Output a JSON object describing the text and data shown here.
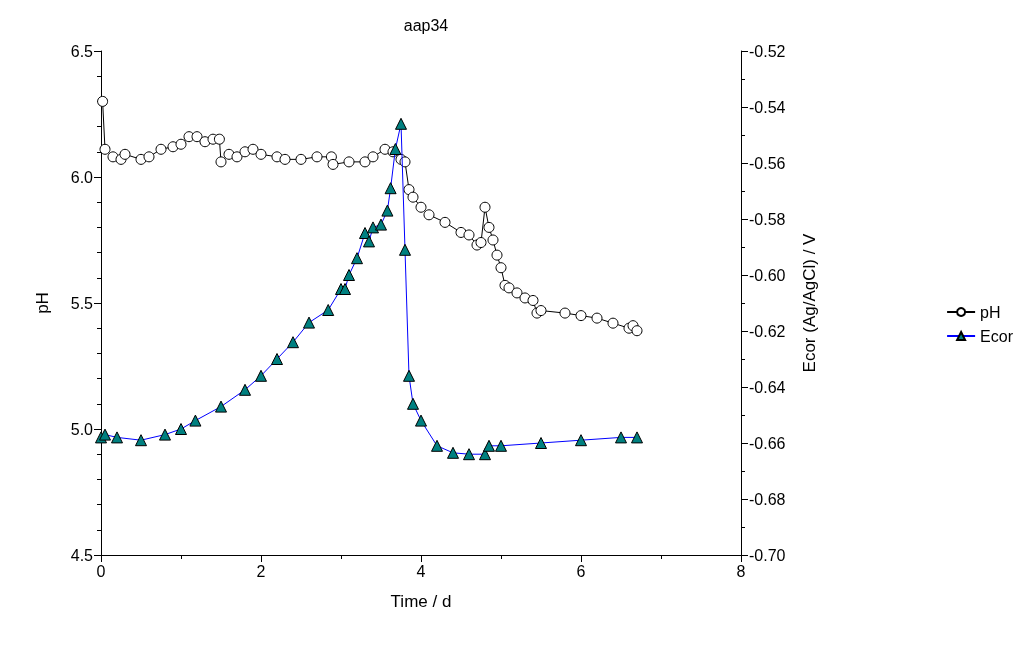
{
  "chart_data": {
    "type": "line",
    "title": "aap34",
    "xlabel": "Time / d",
    "ylabel": "pH",
    "y2label": "Ecor (Ag/AgCl) / V",
    "xlim": [
      0,
      8
    ],
    "xticks": [
      0,
      2,
      4,
      6,
      8
    ],
    "ylim": [
      4.5,
      6.5
    ],
    "yticks": [
      4.5,
      {
        "value": 5,
        "label": "5.0"
      },
      5.5,
      {
        "value": 6,
        "label": "6.0"
      },
      6.5
    ],
    "y2lim": [
      -0.7,
      -0.52
    ],
    "y2ticks": [
      {
        "value": -0.7,
        "label": "-0.70"
      },
      -0.68,
      -0.66,
      -0.64,
      -0.62,
      {
        "value": -0.6,
        "label": "-0.60"
      },
      -0.58,
      -0.56,
      -0.54,
      -0.52
    ],
    "grid": false,
    "legend": "right",
    "line_style": "solid",
    "series": [
      {
        "name": "pH",
        "color": "#000000",
        "marker": "circle",
        "x": [
          0.02,
          0.05,
          0.15,
          0.25,
          0.3,
          0.5,
          0.6,
          0.75,
          0.9,
          1.0,
          1.1,
          1.2,
          1.3,
          1.4,
          1.48,
          1.5,
          1.6,
          1.7,
          1.8,
          1.9,
          2.0,
          2.2,
          2.3,
          2.5,
          2.7,
          2.88,
          2.9,
          3.1,
          3.3,
          3.4,
          3.55,
          3.65,
          3.75,
          3.8,
          3.85,
          3.9,
          4.0,
          4.1,
          4.3,
          4.5,
          4.6,
          4.7,
          4.75,
          4.8,
          4.85,
          4.9,
          4.95,
          5.0,
          5.05,
          5.1,
          5.2,
          5.3,
          5.4,
          5.45,
          5.5,
          5.8,
          6.0,
          6.2,
          6.4,
          6.6,
          6.65,
          6.7
        ],
        "values": [
          6.3,
          6.11,
          6.08,
          6.07,
          6.09,
          6.07,
          6.08,
          6.11,
          6.12,
          6.13,
          6.16,
          6.16,
          6.14,
          6.15,
          6.15,
          6.06,
          6.09,
          6.08,
          6.1,
          6.11,
          6.09,
          6.08,
          6.07,
          6.07,
          6.08,
          6.08,
          6.05,
          6.06,
          6.06,
          6.08,
          6.11,
          6.1,
          6.07,
          6.06,
          5.95,
          5.92,
          5.88,
          5.85,
          5.82,
          5.78,
          5.77,
          5.73,
          5.74,
          5.88,
          5.8,
          5.75,
          5.69,
          5.64,
          5.57,
          5.56,
          5.54,
          5.52,
          5.51,
          5.46,
          5.47,
          5.46,
          5.45,
          5.44,
          5.42,
          5.4,
          5.41,
          5.39
        ]
      },
      {
        "name": "Ecor",
        "color": "#008080",
        "marker": "triangle",
        "axis": "y2",
        "x": [
          0.0,
          0.05,
          0.2,
          0.5,
          0.8,
          1.0,
          1.18,
          1.5,
          1.8,
          2.0,
          2.2,
          2.4,
          2.6,
          2.84,
          3.0,
          3.05,
          3.1,
          3.2,
          3.3,
          3.35,
          3.4,
          3.5,
          3.58,
          3.62,
          3.68,
          3.75,
          3.8,
          3.85,
          3.9,
          4.0,
          4.2,
          4.4,
          4.6,
          4.8,
          4.85,
          5.0,
          5.5,
          6.0,
          6.5,
          6.7
        ],
        "values": [
          -0.658,
          -0.657,
          -0.658,
          -0.659,
          -0.657,
          -0.655,
          -0.652,
          -0.647,
          -0.641,
          -0.636,
          -0.63,
          -0.624,
          -0.617,
          -0.6125,
          -0.605,
          -0.605,
          -0.6,
          -0.594,
          -0.585,
          -0.588,
          -0.583,
          -0.582,
          -0.577,
          -0.569,
          -0.555,
          -0.546,
          -0.591,
          -0.636,
          -0.646,
          -0.652,
          -0.661,
          -0.6635,
          -0.664,
          -0.664,
          -0.661,
          -0.661,
          -0.66,
          -0.659,
          -0.658,
          -0.658
        ]
      }
    ]
  }
}
